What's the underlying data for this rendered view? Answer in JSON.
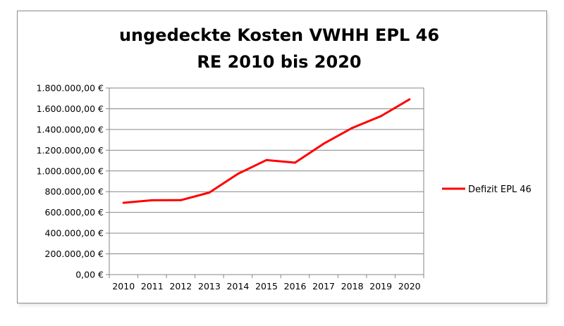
{
  "chart_data": {
    "type": "line",
    "title": [
      "ungedeckte Kosten VWHH EPL 46",
      "RE 2010 bis 2020"
    ],
    "xlabel": "",
    "ylabel": "",
    "categories": [
      "2010",
      "2011",
      "2012",
      "2013",
      "2014",
      "2015",
      "2016",
      "2017",
      "2018",
      "2019",
      "2020"
    ],
    "series": [
      {
        "name": "Defizit EPL 46",
        "color": "#ff0000",
        "values": [
          693000,
          717000,
          718000,
          791000,
          972000,
          1105000,
          1080000,
          1263000,
          1415000,
          1528000,
          1690000
        ]
      }
    ],
    "ylim": [
      0,
      1800000
    ],
    "y_ticks": [
      0,
      200000,
      400000,
      600000,
      800000,
      1000000,
      1200000,
      1400000,
      1600000,
      1800000
    ],
    "y_tick_labels": [
      "0,00 €",
      "200.000,00 €",
      "400.000,00 €",
      "600.000,00 €",
      "800.000,00 €",
      "1.000.000,00 €",
      "1.200.000,00 €",
      "1.400.000,00 €",
      "1.600.000,00 €",
      "1.800.000,00 €"
    ],
    "grid": "horizontal",
    "legend": "right"
  }
}
